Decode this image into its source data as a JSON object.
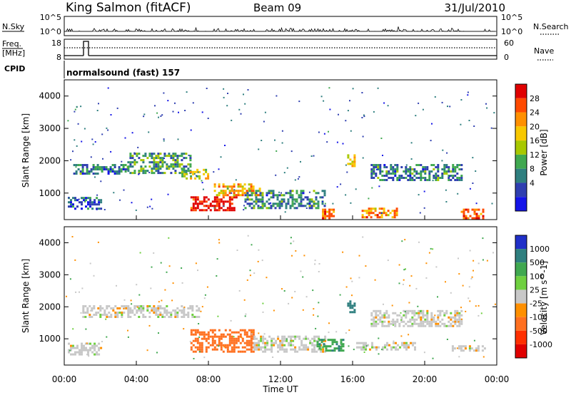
{
  "header": {
    "station": "King Salmon (fitACF)",
    "beam": "Beam 09",
    "date": "31/Jul/2010"
  },
  "panels": {
    "nsky_label": "N.Sky",
    "nsearch_label": "N.Search",
    "nsky_ticks": [
      "10^5",
      "10^0"
    ],
    "freq_label": "Freq.",
    "freq_unit": "[MHz]",
    "freq_ticks": [
      "18",
      "8"
    ],
    "nave_label": "Nave",
    "nave_ticks": [
      "60",
      "0"
    ],
    "cpid_label": "CPID",
    "cpid_value": "normalsound (fast) 157"
  },
  "chart_data": [
    {
      "type": "heatmap",
      "title": "Power",
      "ylabel": "Slant Range [km]",
      "xlabel": "",
      "xlim": [
        "00:00",
        "24:00"
      ],
      "ylim": [
        180,
        4500
      ],
      "yticks": [
        "4000",
        "3000",
        "2000",
        "1000"
      ],
      "colorbar": {
        "label": "Power [dB]",
        "ticks": [
          "28",
          "24",
          "20",
          "16",
          "12",
          "8",
          "4"
        ],
        "colors": [
          "#e00000",
          "#ff4a00",
          "#ff9000",
          "#f8c800",
          "#a8c800",
          "#40a850",
          "#2f7f7f",
          "#2f3fb0",
          "#1414e8"
        ]
      },
      "echo_regions": [
        {
          "t_start": 0.2,
          "t_end": 2.0,
          "range_min": 520,
          "range_max": 880,
          "level_db": 8
        },
        {
          "t_start": 0.5,
          "t_end": 3.5,
          "range_min": 1600,
          "range_max": 1900,
          "level_db": 10
        },
        {
          "t_start": 3.5,
          "t_end": 7.0,
          "range_min": 1650,
          "range_max": 2250,
          "level_db": 12
        },
        {
          "t_start": 6.5,
          "t_end": 8.0,
          "range_min": 1450,
          "range_max": 1750,
          "level_db": 18
        },
        {
          "t_start": 7.0,
          "t_end": 9.5,
          "range_min": 450,
          "range_max": 900,
          "level_db": 28
        },
        {
          "t_start": 8.3,
          "t_end": 10.8,
          "range_min": 950,
          "range_max": 1300,
          "level_db": 20
        },
        {
          "t_start": 10.0,
          "t_end": 14.5,
          "range_min": 550,
          "range_max": 1100,
          "level_db": 10
        },
        {
          "t_start": 14.3,
          "t_end": 15.0,
          "range_min": 230,
          "range_max": 520,
          "level_db": 24
        },
        {
          "t_start": 15.7,
          "t_end": 16.1,
          "range_min": 1850,
          "range_max": 2200,
          "level_db": 18
        },
        {
          "t_start": 16.5,
          "t_end": 18.5,
          "range_min": 240,
          "range_max": 550,
          "level_db": 22
        },
        {
          "t_start": 17.0,
          "t_end": 22.0,
          "range_min": 1400,
          "range_max": 1900,
          "level_db": 10
        },
        {
          "t_start": 22.0,
          "t_end": 23.3,
          "range_min": 250,
          "range_max": 520,
          "level_db": 24
        }
      ]
    },
    {
      "type": "heatmap",
      "title": "Velocity",
      "ylabel": "Slant Range [km]",
      "xlabel": "Time UT",
      "xlim": [
        "00:00",
        "24:00"
      ],
      "ylim": [
        180,
        4500
      ],
      "xticks": [
        "00:00",
        "04:00",
        "08:00",
        "12:00",
        "16:00",
        "20:00",
        "00:00"
      ],
      "yticks": [
        "4000",
        "3000",
        "2000",
        "1000"
      ],
      "colorbar": {
        "label": "Velocity [m s^-1]",
        "ticks": [
          "1000",
          "500",
          "100",
          "25",
          "-25",
          "-100",
          "-500",
          "-1000"
        ],
        "colors": [
          "#2030c8",
          "#2f7f7f",
          "#40a850",
          "#6fd040",
          "#c8c8c8",
          "#ff9000",
          "#ff7020",
          "#ff3000",
          "#e00000"
        ]
      },
      "echo_regions": [
        {
          "t_start": 0.2,
          "t_end": 2.0,
          "range_min": 520,
          "range_max": 880,
          "velocity": 0
        },
        {
          "t_start": 1.0,
          "t_end": 7.5,
          "range_min": 1650,
          "range_max": 2050,
          "velocity": 0
        },
        {
          "t_start": 7.0,
          "t_end": 10.5,
          "range_min": 600,
          "range_max": 1300,
          "velocity": -150
        },
        {
          "t_start": 10.5,
          "t_end": 14.5,
          "range_min": 600,
          "range_max": 1100,
          "velocity": 0
        },
        {
          "t_start": 14.0,
          "t_end": 15.5,
          "range_min": 600,
          "range_max": 1000,
          "velocity": 80
        },
        {
          "t_start": 15.7,
          "t_end": 16.1,
          "range_min": 1850,
          "range_max": 2200,
          "velocity": 300
        },
        {
          "t_start": 16.2,
          "t_end": 19.5,
          "range_min": 650,
          "range_max": 900,
          "velocity": 0
        },
        {
          "t_start": 17.0,
          "t_end": 22.0,
          "range_min": 1400,
          "range_max": 1900,
          "velocity": 0
        },
        {
          "t_start": 21.5,
          "t_end": 23.3,
          "range_min": 600,
          "range_max": 800,
          "velocity": 0
        }
      ]
    }
  ]
}
